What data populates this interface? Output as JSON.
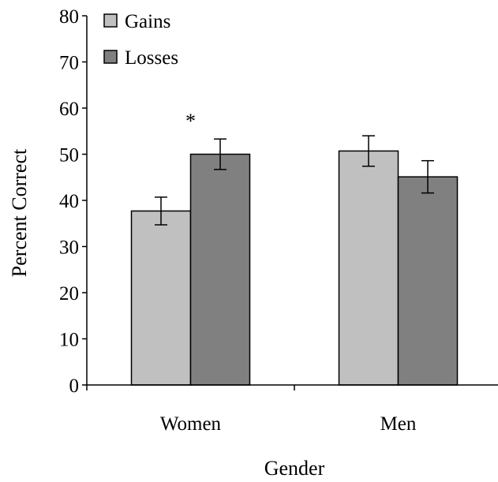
{
  "chart_data": {
    "type": "bar",
    "title": "",
    "xlabel": "Gender",
    "ylabel": "Percent Correct",
    "ylim": [
      0,
      80
    ],
    "yticks": [
      0,
      10,
      20,
      30,
      40,
      50,
      60,
      70,
      80
    ],
    "categories": [
      "Women",
      "Men"
    ],
    "series": [
      {
        "name": "Gains",
        "color": "#c0c0c0",
        "values": [
          37.7,
          50.7
        ],
        "error": [
          3.0,
          3.3
        ]
      },
      {
        "name": "Losses",
        "color": "#808080",
        "values": [
          50.0,
          45.1
        ],
        "error": [
          3.3,
          3.5
        ]
      }
    ],
    "legend": {
      "position": "top-left"
    },
    "annotations": [
      {
        "text": "*",
        "category": "Women"
      }
    ],
    "grid": false
  }
}
